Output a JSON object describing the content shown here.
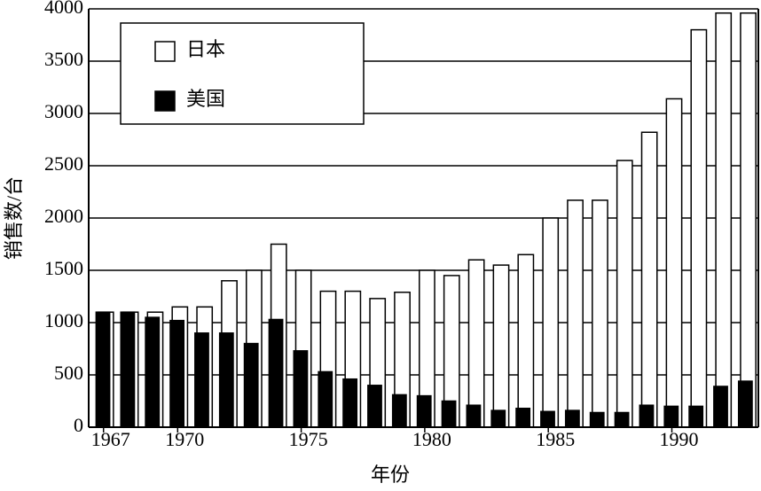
{
  "chart_data": {
    "type": "bar",
    "x": [
      1967,
      1968,
      1969,
      1970,
      1971,
      1972,
      1973,
      1974,
      1975,
      1976,
      1977,
      1978,
      1979,
      1980,
      1981,
      1982,
      1983,
      1984,
      1985,
      1986,
      1987,
      1988,
      1989,
      1990,
      1991,
      1992,
      1993
    ],
    "series": [
      {
        "name": "日本",
        "color": "#ffffff",
        "values": [
          1100,
          1100,
          1100,
          1150,
          1150,
          1400,
          1500,
          1750,
          1500,
          1300,
          1300,
          1230,
          1290,
          1500,
          1450,
          1600,
          1550,
          1650,
          2000,
          2170,
          2170,
          2550,
          2820,
          3140,
          3800,
          3960,
          3960
        ]
      },
      {
        "name": "美国",
        "color": "#000000",
        "values": [
          1100,
          1100,
          1050,
          1020,
          900,
          900,
          800,
          1030,
          730,
          530,
          460,
          400,
          310,
          300,
          250,
          210,
          160,
          180,
          150,
          160,
          140,
          140,
          210,
          200,
          200,
          390,
          440
        ]
      }
    ],
    "xlabel": "年份",
    "ylabel": "销售数/台",
    "xlim": [
      1966.4,
      1993.5
    ],
    "xticks": [
      1967,
      1970,
      1975,
      1980,
      1985,
      1990
    ],
    "ylim": [
      0,
      4000
    ],
    "yticks": [
      0,
      500,
      1000,
      1500,
      2000,
      2500,
      3000,
      3500,
      4000
    ],
    "grid": true,
    "legend": "upper left"
  }
}
